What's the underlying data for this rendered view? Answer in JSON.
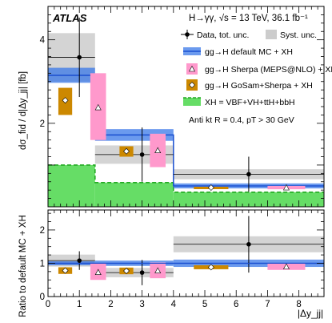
{
  "header": {
    "atlas_label": "ATLAS",
    "process": "H→γγ, √s = 13 TeV, 36.1 fb⁻¹",
    "selection": "Anti kt R = 0.4, pT > 30 GeV"
  },
  "legend": [
    {
      "label": "Data, tot. unc.",
      "marker": "data",
      "color": "#000000"
    },
    {
      "label": "Syst. unc.",
      "marker": "syst",
      "color": "#cccccc"
    },
    {
      "label": "gg→H default MC + XH",
      "marker": "band",
      "color": "#3a78e8"
    },
    {
      "label": "gg→H Sherpa (MEPS@NLO) + XH",
      "marker": "triangle",
      "color": "#ff99cc"
    },
    {
      "label": "gg→H GoSam+Sherpa + XH",
      "marker": "diamond",
      "color": "#cc8800"
    },
    {
      "label": "XH = VBF+VH+ttH+bbH",
      "marker": "dashed",
      "color": "#66dd66"
    }
  ],
  "chart_data": [
    {
      "type": "bar",
      "panel": "main",
      "xlabel": "|Δy_jj|",
      "ylabel": "dσ_fid / d|Δy_jj|  [fb]",
      "xlim": [
        0,
        8.8
      ],
      "ylim": [
        0,
        4.8
      ],
      "xticks": [
        0,
        1,
        2,
        3,
        4,
        5,
        6,
        7,
        8
      ],
      "yticks": [
        2,
        4
      ],
      "bins": [
        [
          0,
          1.5
        ],
        [
          1.5,
          4
        ],
        [
          4,
          8.8
        ]
      ],
      "data": {
        "x": [
          1.0,
          3.0,
          6.4
        ],
        "y": [
          3.58,
          1.25,
          0.78
        ],
        "err_up": [
          0.95,
          0.65,
          0.42
        ],
        "err_down": [
          0.95,
          0.65,
          0.42
        ],
        "syst_up": [
          0.58,
          0.22,
          0.12
        ],
        "syst_down": [
          0.58,
          0.22,
          0.12
        ]
      },
      "default_mc": {
        "values": [
          3.15,
          1.72,
          0.5
        ],
        "unc": [
          0.18,
          0.14,
          0.06
        ]
      },
      "xh": {
        "values": [
          1.0,
          0.58,
          0.35
        ]
      },
      "sherpa": {
        "x": [
          1.6,
          3.5,
          7.6
        ],
        "values": [
          2.38,
          1.35,
          0.46
        ],
        "low": [
          1.6,
          0.95,
          0.42
        ],
        "high": [
          3.2,
          1.75,
          0.5
        ]
      },
      "gosam": {
        "x": [
          0.55,
          2.5,
          5.2
        ],
        "values": [
          2.55,
          1.33,
          0.46
        ],
        "low": [
          2.2,
          1.2,
          0.44
        ],
        "high": [
          2.85,
          1.45,
          0.48
        ]
      }
    },
    {
      "type": "bar",
      "panel": "ratio",
      "xlabel": "|Δy_jj|",
      "ylabel": "Ratio to default MC + XH",
      "xlim": [
        0,
        8.8
      ],
      "ylim": [
        0,
        2.6
      ],
      "xticks": [
        0,
        1,
        2,
        3,
        4,
        5,
        6,
        7,
        8
      ],
      "yticks": [
        0,
        1,
        2
      ],
      "bins": [
        [
          0,
          1.5
        ],
        [
          1.5,
          4
        ],
        [
          4,
          8.8
        ]
      ],
      "data": {
        "x": [
          1.0,
          3.0,
          6.4
        ],
        "y": [
          1.08,
          0.72,
          1.57
        ],
        "err_up": [
          0.28,
          0.38,
          0.85
        ],
        "err_down": [
          0.28,
          0.38,
          0.85
        ],
        "syst_up": [
          0.18,
          0.14,
          0.24
        ],
        "syst_down": [
          0.18,
          0.14,
          0.24
        ]
      },
      "default_mc": {
        "values": [
          1.0,
          1.0,
          1.0
        ],
        "unc": [
          0.06,
          0.08,
          0.11
        ]
      },
      "sherpa": {
        "x": [
          1.6,
          3.5,
          7.6
        ],
        "values": [
          0.73,
          0.78,
          0.9
        ],
        "low": [
          0.5,
          0.55,
          0.8
        ],
        "high": [
          1.0,
          1.02,
          1.0
        ]
      },
      "gosam": {
        "x": [
          0.55,
          2.5,
          5.2
        ],
        "values": [
          0.78,
          0.77,
          0.88
        ],
        "low": [
          0.68,
          0.67,
          0.82
        ],
        "high": [
          0.88,
          0.87,
          0.94
        ]
      }
    }
  ]
}
